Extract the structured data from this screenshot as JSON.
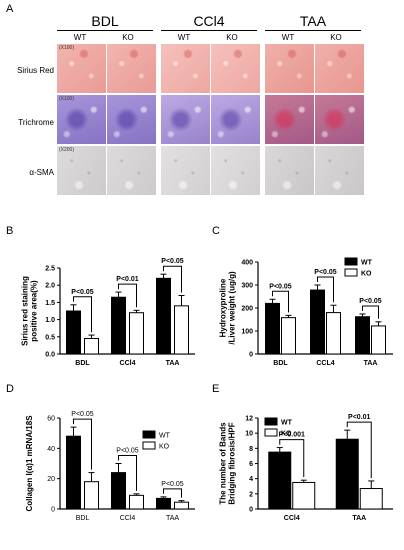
{
  "histology": {
    "letter": "A",
    "groups": [
      {
        "title": "BDL",
        "wt": "WT",
        "ko": "KO"
      },
      {
        "title": "CCl4",
        "wt": "WT",
        "ko": "KO"
      },
      {
        "title": "TAA",
        "wt": "WT",
        "ko": "KO"
      }
    ],
    "rows": [
      {
        "label": "Sirius Red",
        "magnification": "(X100)",
        "colors": [
          "#f0a8a2",
          "#f4b6b0",
          "#eea29b"
        ]
      },
      {
        "label": "Trichrome",
        "magnification": "(X100)",
        "colors": [
          "#9d8ad6",
          "#b49fe0",
          "#c06a8a"
        ]
      },
      {
        "label": "α-SMA",
        "magnification": "(X200)",
        "colors": [
          "#d8d5d6",
          "#dedbdc",
          "#d4d1d2"
        ]
      }
    ]
  },
  "chart_data": [
    {
      "letter": "B",
      "type": "bar",
      "categories": [
        "BDL",
        "CCl4",
        "TAA"
      ],
      "series": [
        {
          "name": "WT",
          "values": [
            1.25,
            1.65,
            2.2
          ],
          "errors": [
            0.18,
            0.15,
            0.12
          ]
        },
        {
          "name": "KO",
          "values": [
            0.45,
            1.2,
            1.4
          ],
          "errors": [
            0.1,
            0.07,
            0.3
          ]
        }
      ],
      "ylabel": "Sirius red staining positive area(%)",
      "ylabel_lines": [
        "Sirius red staining",
        "positive area(%)"
      ],
      "ylim": [
        0,
        2.5
      ],
      "yticks": [
        "0.0",
        "0.5",
        "1.0",
        "1.5",
        "2.0",
        "2.5"
      ],
      "significance": [
        "P<0.05",
        "P<0.01",
        "P<0.05"
      ],
      "legend": false
    },
    {
      "letter": "C",
      "type": "bar",
      "categories": [
        "BDL",
        "CCL4",
        "TAA"
      ],
      "series": [
        {
          "name": "WT",
          "values": [
            220,
            278,
            162
          ],
          "errors": [
            18,
            22,
            12
          ]
        },
        {
          "name": "KO",
          "values": [
            158,
            180,
            122
          ],
          "errors": [
            10,
            32,
            18
          ]
        }
      ],
      "ylabel": "Hydroxyproline /Liver weight (ug/g)",
      "ylabel_lines": [
        "Hydroxyproline",
        "/Liver weight (ug/g)"
      ],
      "ylim": [
        0,
        400
      ],
      "yticks": [
        "0",
        "100",
        "200",
        "300",
        "400"
      ],
      "significance": [
        "P<0.05",
        "P<0.05",
        "P<0.05"
      ],
      "legend": true,
      "legend_position": "top-right"
    },
    {
      "letter": "D",
      "type": "bar",
      "categories": [
        "BDL",
        "CCl4",
        "TAA"
      ],
      "series": [
        {
          "name": "WT",
          "values": [
            48,
            24,
            7
          ],
          "errors": [
            6,
            6,
            1
          ]
        },
        {
          "name": "KO",
          "values": [
            18,
            9,
            4.5
          ],
          "errors": [
            6,
            1,
            1
          ]
        }
      ],
      "ylabel": "Collagen I(α)1 mRNA/18S",
      "ylabel_lines": [
        "Collagen I(α)1 mRNA/18S"
      ],
      "ylim": [
        0,
        60
      ],
      "yticks": [
        "0",
        "20",
        "40",
        "60"
      ],
      "significance": [
        "P<0.05",
        "P<0.05",
        "P<0.05"
      ],
      "legend": true,
      "legend_position": "top-right"
    },
    {
      "letter": "E",
      "type": "bar",
      "categories": [
        "CCl4",
        "TAA"
      ],
      "series": [
        {
          "name": "WT",
          "values": [
            7.5,
            9.2
          ],
          "errors": [
            0.6,
            1.2
          ]
        },
        {
          "name": "KO",
          "values": [
            3.5,
            2.7
          ],
          "errors": [
            0.3,
            1.0
          ]
        }
      ],
      "ylabel": "The number of Bands Bridging fibrosis/HPF",
      "ylabel_lines": [
        "The number of Bands",
        "Bridging fibrosis/HPF"
      ],
      "ylim": [
        0,
        12
      ],
      "yticks": [
        "0",
        "2",
        "4",
        "6",
        "8",
        "10",
        "12"
      ],
      "significance": [
        "P<0.001",
        "P<0.01"
      ],
      "legend": true,
      "legend_position": "top-left"
    }
  ],
  "colors": {
    "wt": "#000000",
    "ko": "#ffffff",
    "axis": "#000000"
  }
}
